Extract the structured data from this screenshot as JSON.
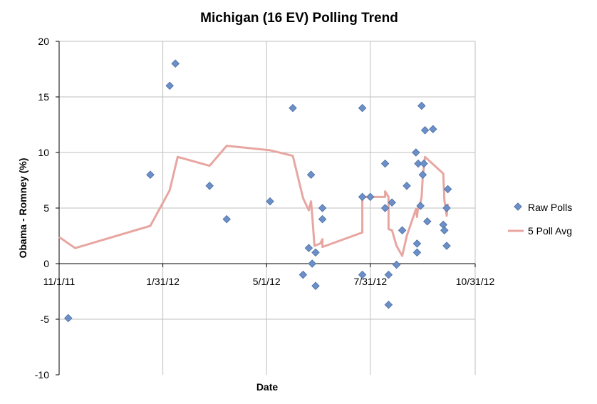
{
  "chart_data": {
    "type": "scatter",
    "title": "Michigan (16 EV) Polling Trend",
    "xlabel": "Date",
    "ylabel": "Obama - Romney (%)",
    "xlim": [
      "2011-11-01",
      "2012-10-31"
    ],
    "ylim": [
      -10,
      20
    ],
    "x_ticks": [
      "11/1/11",
      "1/31/12",
      "5/1/12",
      "7/31/12",
      "10/31/12"
    ],
    "y_ticks": [
      "-10",
      "-5",
      "0",
      "5",
      "10",
      "15",
      "20"
    ],
    "grid": true,
    "legend_position": "right",
    "colors": {
      "raw": "#6d8fc7",
      "raw_edge": "#4a6fa5",
      "avg": "#e8a6a1",
      "grid": "#bfbfbf"
    },
    "series": [
      {
        "name": "Raw Polls",
        "marker": "diamond",
        "points": [
          {
            "x": "2011-11-09",
            "y": -4.9
          },
          {
            "x": "2012-01-20",
            "y": 8.0
          },
          {
            "x": "2012-02-06",
            "y": 16.0
          },
          {
            "x": "2012-02-11",
            "y": 18.0
          },
          {
            "x": "2012-03-12",
            "y": 7.0
          },
          {
            "x": "2012-03-27",
            "y": 4.0
          },
          {
            "x": "2012-05-04",
            "y": 5.6
          },
          {
            "x": "2012-05-24",
            "y": 14.0
          },
          {
            "x": "2012-06-02",
            "y": -1.0
          },
          {
            "x": "2012-06-07",
            "y": 1.4
          },
          {
            "x": "2012-06-09",
            "y": 8.0
          },
          {
            "x": "2012-06-10",
            "y": 0.0
          },
          {
            "x": "2012-06-13",
            "y": 1.0
          },
          {
            "x": "2012-06-13",
            "y": -2.0
          },
          {
            "x": "2012-06-19",
            "y": 5.0
          },
          {
            "x": "2012-06-19",
            "y": 4.0
          },
          {
            "x": "2012-07-24",
            "y": 14.0
          },
          {
            "x": "2012-07-24",
            "y": 6.0
          },
          {
            "x": "2012-07-24",
            "y": -1.0
          },
          {
            "x": "2012-07-31",
            "y": 6.0
          },
          {
            "x": "2012-08-13",
            "y": 9.0
          },
          {
            "x": "2012-08-13",
            "y": 5.0
          },
          {
            "x": "2012-08-16",
            "y": -1.0
          },
          {
            "x": "2012-08-16",
            "y": -3.7
          },
          {
            "x": "2012-08-19",
            "y": 5.5
          },
          {
            "x": "2012-08-23",
            "y": -0.1
          },
          {
            "x": "2012-08-28",
            "y": 3.0
          },
          {
            "x": "2012-09-01",
            "y": 7.0
          },
          {
            "x": "2012-09-09",
            "y": 10.0
          },
          {
            "x": "2012-09-10",
            "y": 1.8
          },
          {
            "x": "2012-09-10",
            "y": 1.0
          },
          {
            "x": "2012-09-11",
            "y": 9.0
          },
          {
            "x": "2012-09-13",
            "y": 5.2
          },
          {
            "x": "2012-09-14",
            "y": 14.2
          },
          {
            "x": "2012-09-15",
            "y": 8.0
          },
          {
            "x": "2012-09-16",
            "y": 9.0
          },
          {
            "x": "2012-09-17",
            "y": 12.0
          },
          {
            "x": "2012-09-19",
            "y": 3.8
          },
          {
            "x": "2012-09-24",
            "y": 12.1
          },
          {
            "x": "2012-10-03",
            "y": 3.5
          },
          {
            "x": "2012-10-04",
            "y": 3.0
          },
          {
            "x": "2012-10-06",
            "y": 1.6
          },
          {
            "x": "2012-10-06",
            "y": 5.0
          },
          {
            "x": "2012-10-07",
            "y": 6.7
          }
        ]
      },
      {
        "name": "5 Poll Avg",
        "type": "line",
        "points": [
          {
            "x": "2011-11-01",
            "y": 2.4
          },
          {
            "x": "2011-11-15",
            "y": 1.4
          },
          {
            "x": "2012-01-20",
            "y": 3.4
          },
          {
            "x": "2012-02-06",
            "y": 6.6
          },
          {
            "x": "2012-02-13",
            "y": 9.6
          },
          {
            "x": "2012-03-12",
            "y": 8.8
          },
          {
            "x": "2012-03-27",
            "y": 10.6
          },
          {
            "x": "2012-05-04",
            "y": 10.2
          },
          {
            "x": "2012-05-24",
            "y": 9.7
          },
          {
            "x": "2012-06-02",
            "y": 5.9
          },
          {
            "x": "2012-06-07",
            "y": 4.8
          },
          {
            "x": "2012-06-09",
            "y": 5.6
          },
          {
            "x": "2012-06-10",
            "y": 4.4
          },
          {
            "x": "2012-06-12",
            "y": 1.6
          },
          {
            "x": "2012-06-17",
            "y": 1.8
          },
          {
            "x": "2012-06-19",
            "y": 2.2
          },
          {
            "x": "2012-06-19",
            "y": 1.5
          },
          {
            "x": "2012-07-24",
            "y": 2.8
          },
          {
            "x": "2012-07-24",
            "y": 6.0
          },
          {
            "x": "2012-08-13",
            "y": 6.0
          },
          {
            "x": "2012-08-13",
            "y": 6.5
          },
          {
            "x": "2012-08-16",
            "y": 6.0
          },
          {
            "x": "2012-08-16",
            "y": 3.1
          },
          {
            "x": "2012-08-19",
            "y": 3.0
          },
          {
            "x": "2012-08-23",
            "y": 1.6
          },
          {
            "x": "2012-08-28",
            "y": 0.7
          },
          {
            "x": "2012-09-01",
            "y": 2.5
          },
          {
            "x": "2012-09-09",
            "y": 4.9
          },
          {
            "x": "2012-09-10",
            "y": 4.2
          },
          {
            "x": "2012-09-11",
            "y": 5.2
          },
          {
            "x": "2012-09-13",
            "y": 5.5
          },
          {
            "x": "2012-09-14",
            "y": 6.0
          },
          {
            "x": "2012-09-15",
            "y": 7.8
          },
          {
            "x": "2012-09-17",
            "y": 9.6
          },
          {
            "x": "2012-10-03",
            "y": 8.1
          },
          {
            "x": "2012-10-04",
            "y": 5.7
          },
          {
            "x": "2012-10-06",
            "y": 4.3
          },
          {
            "x": "2012-10-07",
            "y": 5.4
          }
        ]
      }
    ]
  }
}
